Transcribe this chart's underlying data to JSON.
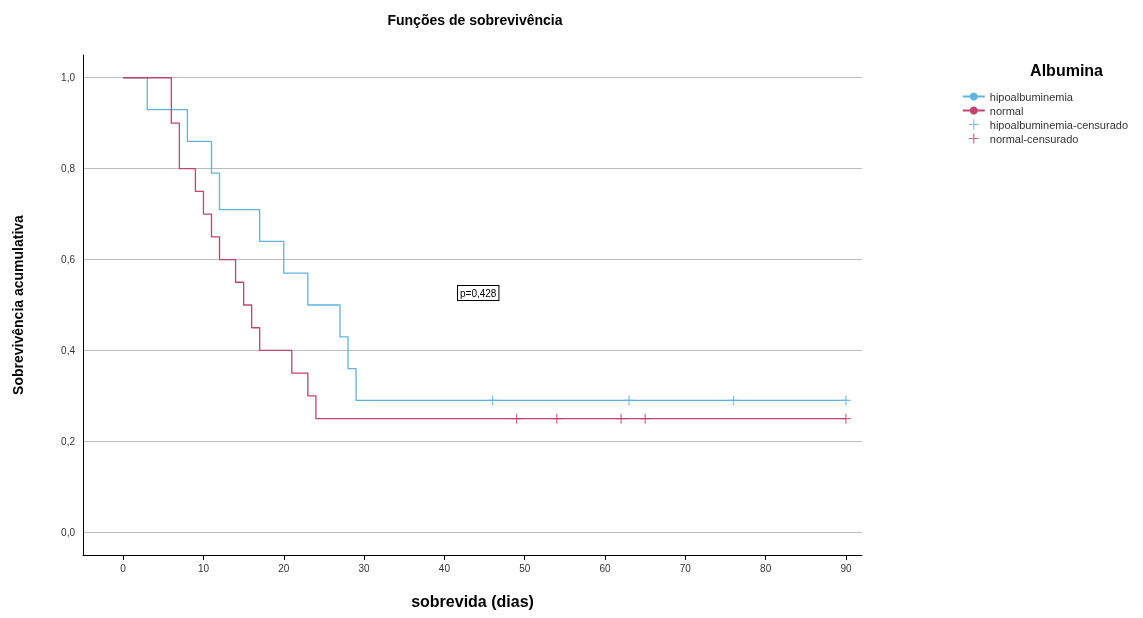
{
  "chart_data": {
    "type": "step",
    "title": "Funções de sobrevivência",
    "xlabel": "sobrevida (dias)",
    "ylabel": "Sobrevivência acumulativa",
    "legend_title": "Albumina",
    "series": [
      {
        "name": "hipoalbuminemia",
        "color": "#5fb3e0",
        "x": [
          0,
          3,
          8,
          11,
          12,
          17,
          20,
          23,
          27,
          28,
          29,
          90
        ],
        "values": [
          1.0,
          0.93,
          0.86,
          0.79,
          0.71,
          0.64,
          0.57,
          0.5,
          0.43,
          0.36,
          0.29,
          0.29
        ]
      },
      {
        "name": "normal",
        "color": "#c0456a",
        "x": [
          0,
          6,
          7,
          9,
          10,
          11,
          12,
          14,
          15,
          16,
          17,
          21,
          23,
          24,
          90
        ],
        "values": [
          1.0,
          0.9,
          0.8,
          0.75,
          0.7,
          0.65,
          0.6,
          0.55,
          0.5,
          0.45,
          0.4,
          0.35,
          0.3,
          0.25,
          0.25
        ]
      },
      {
        "name": "hipoalbuminemia-censurado",
        "type": "scatter",
        "marker": "cross",
        "color": "#5fb3e0",
        "x": [
          46,
          63,
          76,
          90
        ],
        "values": [
          0.29,
          0.29,
          0.29,
          0.29
        ]
      },
      {
        "name": "normal-censurado",
        "type": "scatter",
        "marker": "cross",
        "color": "#c0456a",
        "x": [
          49,
          54,
          62,
          65,
          90
        ],
        "values": [
          0.25,
          0.25,
          0.25,
          0.25,
          0.25
        ]
      }
    ],
    "xlim": [
      -5,
      92
    ],
    "xticks": [
      0,
      10,
      20,
      30,
      40,
      50,
      60,
      70,
      80,
      90
    ],
    "ylim": [
      -0.05,
      1.05
    ],
    "yticks": [
      {
        "value": 0,
        "label": "0,0"
      },
      {
        "value": 0.2,
        "label": "0,2"
      },
      {
        "value": 0.4,
        "label": "0,4"
      },
      {
        "value": 0.6,
        "label": "0,6"
      },
      {
        "value": 0.8,
        "label": "0,8"
      },
      {
        "value": 1,
        "label": "1,0"
      }
    ],
    "grid": "y",
    "legend": "top right",
    "annotations": [
      "p=0,428"
    ]
  }
}
